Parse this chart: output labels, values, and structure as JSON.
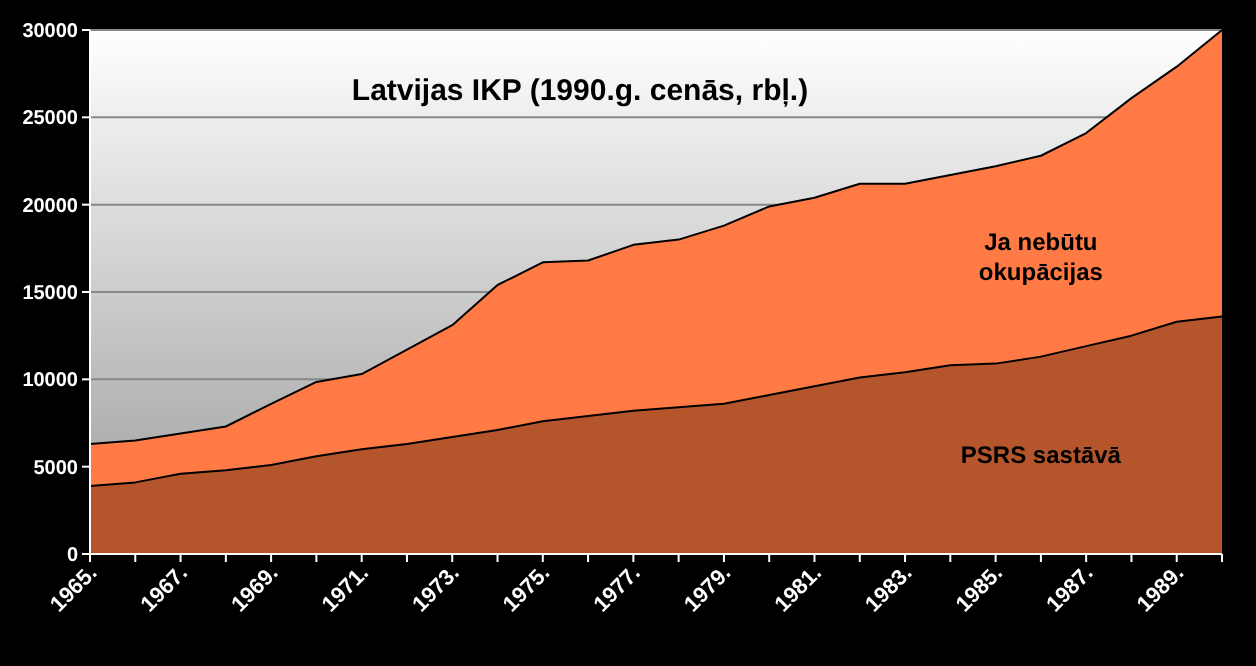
{
  "chart_data": {
    "type": "area",
    "title": "Latvijas IKP (1990.g. cenās, rbļ.)",
    "categories": [
      "1965.",
      null,
      "1967.",
      null,
      "1969.",
      null,
      "1971.",
      null,
      "1973.",
      null,
      "1975.",
      null,
      "1977.",
      null,
      "1979.",
      null,
      "1981.",
      null,
      "1983.",
      null,
      "1985.",
      null,
      "1987.",
      null,
      "1989.",
      null
    ],
    "series": [
      {
        "name": "Ja nebūtu okupācijas",
        "color": "#ff7a45",
        "values": [
          6300,
          6500,
          6900,
          7300,
          8600,
          9850,
          10300,
          11700,
          13100,
          15400,
          16700,
          16800,
          17700,
          18000,
          18800,
          19900,
          20400,
          21200,
          21200,
          21700,
          22200,
          22800,
          24100,
          26100,
          27900,
          30000
        ]
      },
      {
        "name": "PSRS sastāvā",
        "color": "#b4552c",
        "values": [
          3900,
          4100,
          4600,
          4800,
          5100,
          5600,
          6000,
          6300,
          6700,
          7100,
          7600,
          7900,
          8200,
          8400,
          8600,
          9100,
          9600,
          10100,
          10400,
          10800,
          10900,
          11300,
          11900,
          12500,
          13300,
          13600
        ]
      }
    ],
    "ylim": [
      0,
      30000
    ],
    "yticks": [
      0,
      5000,
      10000,
      15000,
      20000,
      25000,
      30000
    ],
    "grid": "y",
    "legend": false
  }
}
